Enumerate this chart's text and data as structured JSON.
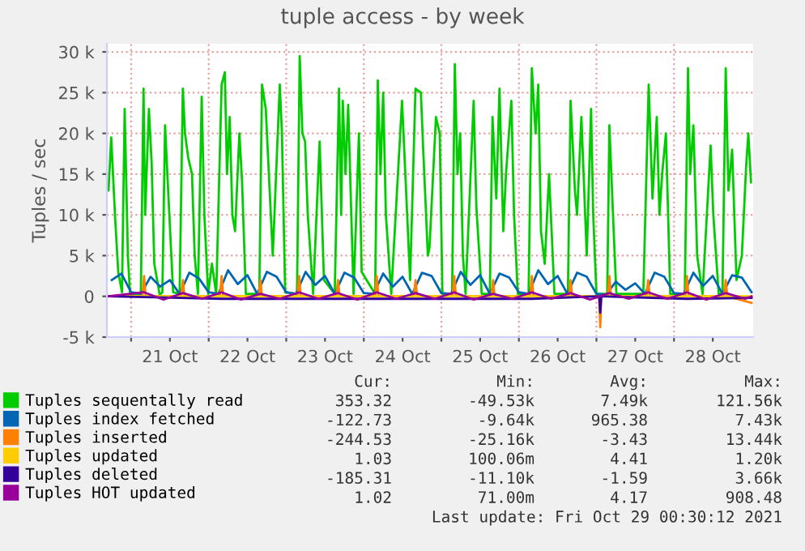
{
  "chart_data": {
    "type": "line",
    "title": "tuple access - by week",
    "ylabel": "Tuples / sec",
    "xlim": [
      "2021-10-20T16:30",
      "2021-10-29T00:30"
    ],
    "xticks": [
      {
        "value": "2021-10-21T00:00",
        "label": null
      },
      {
        "value": "2021-10-21T12:00",
        "label": "21 Oct"
      },
      {
        "value": "2021-10-22T00:00",
        "label": null
      },
      {
        "value": "2021-10-22T12:00",
        "label": "22 Oct"
      },
      {
        "value": "2021-10-23T00:00",
        "label": null
      },
      {
        "value": "2021-10-23T12:00",
        "label": "23 Oct"
      },
      {
        "value": "2021-10-24T00:00",
        "label": null
      },
      {
        "value": "2021-10-24T12:00",
        "label": "24 Oct"
      },
      {
        "value": "2021-10-25T00:00",
        "label": null
      },
      {
        "value": "2021-10-25T12:00",
        "label": "25 Oct"
      },
      {
        "value": "2021-10-26T00:00",
        "label": null
      },
      {
        "value": "2021-10-26T12:00",
        "label": "26 Oct"
      },
      {
        "value": "2021-10-27T00:00",
        "label": null
      },
      {
        "value": "2021-10-27T12:00",
        "label": "27 Oct"
      },
      {
        "value": "2021-10-28T00:00",
        "label": null
      },
      {
        "value": "2021-10-28T12:00",
        "label": "28 Oct"
      }
    ],
    "ylim": [
      -5000,
      31000
    ],
    "yticks": [
      {
        "value": -5000,
        "label": "-5 k"
      },
      0,
      {
        "value": 5000,
        "label": "5 k"
      },
      {
        "value": 10000,
        "label": "10 k"
      },
      {
        "value": 15000,
        "label": "15 k"
      },
      {
        "value": 20000,
        "label": "20 k"
      },
      {
        "value": 25000,
        "label": "25 k"
      },
      {
        "value": 30000,
        "label": "30 k"
      }
    ],
    "grid": true,
    "legend": "bottom",
    "line_style": "solid",
    "series": [
      {
        "name": "Tuples sequentally read",
        "color": "#00cc00",
        "x": [
          "2021-10-20T17:00",
          "2021-10-20T17:50",
          "2021-10-20T19:00",
          "2021-10-20T20:00",
          "2021-10-20T21:10",
          "2021-10-20T22:00",
          "2021-10-20T23:00",
          "2021-10-20T23:40",
          "2021-10-21T03:00",
          "2021-10-21T03:50",
          "2021-10-21T04:20",
          "2021-10-21T05:30",
          "2021-10-21T06:20",
          "2021-10-21T07:10",
          "2021-10-21T08:50",
          "2021-10-21T09:40",
          "2021-10-21T10:30",
          "2021-10-21T11:20",
          "2021-10-21T13:00",
          "2021-10-21T15:00",
          "2021-10-21T16:00",
          "2021-10-21T16:40",
          "2021-10-21T17:40",
          "2021-10-21T18:50",
          "2021-10-21T19:40",
          "2021-10-21T20:40",
          "2021-10-21T21:50",
          "2021-10-21T22:40",
          "2021-10-21T23:50",
          "2021-10-22T01:00",
          "2021-10-22T02:20",
          "2021-10-22T04:00",
          "2021-10-22T05:00",
          "2021-10-22T05:40",
          "2021-10-22T06:30",
          "2021-10-22T07:20",
          "2021-10-22T08:10",
          "2021-10-22T09:30",
          "2021-10-22T10:20",
          "2021-10-22T11:30",
          "2021-10-22T15:40",
          "2021-10-22T16:30",
          "2021-10-22T17:40",
          "2021-10-22T19:50",
          "2021-10-22T22:00",
          "2021-10-22T22:40",
          "2021-10-22T23:40",
          "2021-10-23T03:20",
          "2021-10-23T04:10",
          "2021-10-23T05:00",
          "2021-10-23T05:50",
          "2021-10-23T06:40",
          "2021-10-23T08:20",
          "2021-10-23T10:20",
          "2021-10-23T11:40",
          "2021-10-23T15:00",
          "2021-10-23T16:20",
          "2021-10-23T17:00",
          "2021-10-23T17:30",
          "2021-10-23T18:20",
          "2021-10-23T19:10",
          "2021-10-23T20:50",
          "2021-10-23T22:30",
          "2021-10-23T23:20",
          "2021-10-24T03:30",
          "2021-10-24T04:20",
          "2021-10-24T05:10",
          "2021-10-24T06:00",
          "2021-10-24T06:50",
          "2021-10-24T08:30",
          "2021-10-24T11:50",
          "2021-10-24T14:20",
          "2021-10-24T16:00",
          "2021-10-24T17:40",
          "2021-10-24T18:30",
          "2021-10-24T19:50",
          "2021-10-24T20:20",
          "2021-10-24T22:20",
          "2021-10-24T23:30",
          "2021-10-25T00:20",
          "2021-10-25T03:20",
          "2021-10-25T04:10",
          "2021-10-25T05:00",
          "2021-10-25T05:50",
          "2021-10-25T06:40",
          "2021-10-25T07:30",
          "2021-10-25T10:00",
          "2021-10-25T10:50",
          "2021-10-25T12:30",
          "2021-10-25T15:00",
          "2021-10-25T15:50",
          "2021-10-25T17:00",
          "2021-10-25T18:00",
          "2021-10-25T19:10",
          "2021-10-25T20:00",
          "2021-10-25T21:40",
          "2021-10-25T22:30",
          "2021-10-25T23:40",
          "2021-10-26T03:00",
          "2021-10-26T04:00",
          "2021-10-26T05:10",
          "2021-10-26T06:00",
          "2021-10-26T06:50",
          "2021-10-26T08:00",
          "2021-10-26T09:20",
          "2021-10-26T11:00",
          "2021-10-26T15:10",
          "2021-10-26T16:00",
          "2021-10-26T17:20",
          "2021-10-26T18:00",
          "2021-10-26T19:20",
          "2021-10-26T21:00",
          "2021-10-26T22:20",
          "2021-10-26T23:00",
          "2021-10-27T00:00",
          "2021-10-27T03:20",
          "2021-10-27T04:00",
          "2021-10-27T05:20",
          "2021-10-27T06:10",
          "2021-10-27T14:30",
          "2021-10-27T16:10",
          "2021-10-27T17:20",
          "2021-10-27T18:40",
          "2021-10-27T19:30",
          "2021-10-27T20:20",
          "2021-10-27T21:30",
          "2021-10-27T22:50",
          "2021-10-28T03:20",
          "2021-10-28T04:20",
          "2021-10-28T05:00",
          "2021-10-28T06:00",
          "2021-10-28T07:10",
          "2021-10-28T08:50",
          "2021-10-28T11:20",
          "2021-10-28T12:10",
          "2021-10-28T13:50",
          "2021-10-28T15:00",
          "2021-10-28T16:00",
          "2021-10-28T16:50",
          "2021-10-28T18:00",
          "2021-10-28T19:20",
          "2021-10-28T21:00",
          "2021-10-28T22:20",
          "2021-10-28T23:00",
          "2021-10-28T23:50"
        ],
        "values": [
          13000,
          19500,
          10000,
          3000,
          500,
          23000,
          5000,
          200,
          200,
          25500,
          10000,
          23000,
          16500,
          4000,
          200,
          500,
          21000,
          14000,
          500,
          300,
          25500,
          20000,
          17000,
          15000,
          5000,
          300,
          24500,
          10000,
          300,
          4000,
          300,
          26000,
          27500,
          15000,
          22000,
          10000,
          8000,
          20000,
          14000,
          300,
          300,
          26000,
          23000,
          5000,
          26000,
          20000,
          500,
          300,
          29500,
          20000,
          19000,
          10000,
          300,
          19000,
          2000,
          300,
          25500,
          10000,
          24000,
          15000,
          23500,
          300,
          20000,
          3000,
          300,
          26500,
          15000,
          25000,
          10000,
          300,
          24000,
          2000,
          25500,
          25000,
          17000,
          5000,
          6000,
          22000,
          20000,
          300,
          300,
          28500,
          15000,
          20000,
          5000,
          300,
          24000,
          11000,
          300,
          300,
          22000,
          12000,
          25500,
          8000,
          15000,
          24000,
          10000,
          300,
          300,
          28000,
          20000,
          26000,
          8000,
          4000,
          15000,
          300,
          300,
          24000,
          13000,
          10000,
          22000,
          5000,
          23000,
          10000,
          300,
          300,
          21000,
          8000,
          300,
          300,
          26000,
          12000,
          22000,
          10000,
          15000,
          20000,
          300,
          300,
          28000,
          15000,
          21000,
          5000,
          300,
          18500,
          10000,
          300,
          300,
          28000,
          13000,
          18000,
          2000,
          5000,
          16000,
          20000,
          14000
        ]
      },
      {
        "name": "Tuples index fetched",
        "color": "#0066b3",
        "x": [
          "2021-10-20T18:00",
          "2021-10-20T21:00",
          "2021-10-21T00:00",
          "2021-10-21T03:00",
          "2021-10-21T06:00",
          "2021-10-21T09:00",
          "2021-10-21T12:00",
          "2021-10-21T15:00",
          "2021-10-21T18:00",
          "2021-10-21T21:00",
          "2021-10-22T00:00",
          "2021-10-22T03:00",
          "2021-10-22T06:00",
          "2021-10-22T09:00",
          "2021-10-22T12:00",
          "2021-10-22T15:00",
          "2021-10-22T18:00",
          "2021-10-22T21:00",
          "2021-10-23T00:00",
          "2021-10-23T03:00",
          "2021-10-23T06:00",
          "2021-10-23T09:00",
          "2021-10-23T12:00",
          "2021-10-23T15:00",
          "2021-10-23T18:00",
          "2021-10-23T21:00",
          "2021-10-24T00:00",
          "2021-10-24T03:00",
          "2021-10-24T06:00",
          "2021-10-24T09:00",
          "2021-10-24T12:00",
          "2021-10-24T15:00",
          "2021-10-24T18:00",
          "2021-10-24T21:00",
          "2021-10-25T00:00",
          "2021-10-25T03:00",
          "2021-10-25T06:00",
          "2021-10-25T09:00",
          "2021-10-25T12:00",
          "2021-10-25T15:00",
          "2021-10-25T18:00",
          "2021-10-25T21:00",
          "2021-10-26T00:00",
          "2021-10-26T03:00",
          "2021-10-26T06:00",
          "2021-10-26T09:00",
          "2021-10-26T12:00",
          "2021-10-26T15:00",
          "2021-10-26T18:00",
          "2021-10-26T21:00",
          "2021-10-27T00:00",
          "2021-10-27T03:00",
          "2021-10-27T06:00",
          "2021-10-27T09:00",
          "2021-10-27T12:00",
          "2021-10-27T15:00",
          "2021-10-27T18:00",
          "2021-10-27T21:00",
          "2021-10-28T00:00",
          "2021-10-28T03:00",
          "2021-10-28T06:00",
          "2021-10-28T09:00",
          "2021-10-28T12:00",
          "2021-10-28T15:00",
          "2021-10-28T18:00",
          "2021-10-28T21:00",
          "2021-10-29T00:00"
        ],
        "values": [
          2000,
          2800,
          500,
          300,
          2400,
          1200,
          2000,
          300,
          2900,
          2200,
          500,
          300,
          3200,
          1500,
          2600,
          300,
          3000,
          2400,
          500,
          300,
          3000,
          1400,
          2500,
          300,
          2900,
          2300,
          400,
          300,
          2800,
          1200,
          2400,
          300,
          2900,
          2500,
          400,
          300,
          3000,
          1400,
          2600,
          300,
          2800,
          2300,
          500,
          300,
          3200,
          1500,
          2500,
          300,
          2900,
          2400,
          300,
          200,
          1800,
          800,
          1600,
          300,
          2900,
          2400,
          400,
          300,
          2900,
          1300,
          2500,
          300,
          2600,
          2300,
          500
        ]
      },
      {
        "name": "Tuples inserted",
        "color": "#ff8000",
        "x": [
          "2021-10-20T17:00",
          "2021-10-21T03:30",
          "2021-10-21T04:00",
          "2021-10-21T04:30",
          "2021-10-21T15:30",
          "2021-10-21T16:00",
          "2021-10-21T16:30",
          "2021-10-22T03:30",
          "2021-10-22T04:00",
          "2021-10-22T04:30",
          "2021-10-22T15:30",
          "2021-10-22T16:00",
          "2021-10-22T16:30",
          "2021-10-23T03:30",
          "2021-10-23T04:00",
          "2021-10-23T04:30",
          "2021-10-23T15:30",
          "2021-10-23T16:00",
          "2021-10-23T16:30",
          "2021-10-24T03:30",
          "2021-10-24T04:00",
          "2021-10-24T04:30",
          "2021-10-24T15:30",
          "2021-10-24T16:00",
          "2021-10-24T16:30",
          "2021-10-25T03:30",
          "2021-10-25T04:00",
          "2021-10-25T04:30",
          "2021-10-25T15:30",
          "2021-10-25T16:00",
          "2021-10-25T16:30",
          "2021-10-26T03:30",
          "2021-10-26T04:00",
          "2021-10-26T04:30",
          "2021-10-26T15:30",
          "2021-10-26T16:00",
          "2021-10-26T16:30",
          "2021-10-27T00:50",
          "2021-10-27T01:10",
          "2021-10-27T01:30",
          "2021-10-27T03:30",
          "2021-10-27T04:00",
          "2021-10-27T04:30",
          "2021-10-27T15:30",
          "2021-10-27T16:00",
          "2021-10-27T16:30",
          "2021-10-28T03:30",
          "2021-10-28T04:00",
          "2021-10-28T04:30",
          "2021-10-28T15:30",
          "2021-10-28T16:00",
          "2021-10-28T16:30",
          "2021-10-29T00:00"
        ],
        "values": [
          0,
          0,
          2500,
          0,
          0,
          2000,
          0,
          0,
          2500,
          0,
          0,
          2000,
          0,
          0,
          2500,
          0,
          0,
          2000,
          0,
          0,
          2500,
          0,
          0,
          2000,
          0,
          0,
          2500,
          0,
          0,
          2000,
          0,
          0,
          2500,
          0,
          0,
          2000,
          0,
          0,
          -3800,
          0,
          0,
          2500,
          0,
          0,
          2000,
          0,
          0,
          2500,
          0,
          0,
          2000,
          0,
          -800
        ]
      },
      {
        "name": "Tuples updated",
        "color": "#ffcc00",
        "x": [
          "2021-10-20T17:00",
          "2021-10-29T00:00"
        ],
        "values": [
          0,
          0
        ]
      },
      {
        "name": "Tuples deleted",
        "color": "#330099",
        "x": [
          "2021-10-20T17:00",
          "2021-10-22T04:00",
          "2021-10-24T04:00",
          "2021-10-26T04:00",
          "2021-10-27T00:50",
          "2021-10-27T01:10",
          "2021-10-27T01:30",
          "2021-10-28T04:00",
          "2021-10-29T00:00"
        ],
        "values": [
          0,
          -300,
          -300,
          -300,
          0,
          -2000,
          0,
          -300,
          -200
        ]
      },
      {
        "name": "Tuples HOT updated",
        "color": "#990099",
        "x": [
          "2021-10-20T17:00",
          "2021-10-21T04:00",
          "2021-10-21T10:00",
          "2021-10-21T16:00",
          "2021-10-21T22:00",
          "2021-10-22T04:00",
          "2021-10-22T10:00",
          "2021-10-22T16:00",
          "2021-10-22T22:00",
          "2021-10-23T04:00",
          "2021-10-23T10:00",
          "2021-10-23T16:00",
          "2021-10-23T22:00",
          "2021-10-24T04:00",
          "2021-10-24T10:00",
          "2021-10-24T16:00",
          "2021-10-24T22:00",
          "2021-10-25T04:00",
          "2021-10-25T10:00",
          "2021-10-25T16:00",
          "2021-10-25T22:00",
          "2021-10-26T04:00",
          "2021-10-26T10:00",
          "2021-10-26T16:00",
          "2021-10-26T22:00",
          "2021-10-27T04:00",
          "2021-10-27T10:00",
          "2021-10-27T16:00",
          "2021-10-27T22:00",
          "2021-10-28T04:00",
          "2021-10-28T10:00",
          "2021-10-28T16:00",
          "2021-10-28T22:00",
          "2021-10-29T00:00"
        ],
        "values": [
          0,
          500,
          -400,
          400,
          -300,
          500,
          -400,
          300,
          -300,
          500,
          -300,
          400,
          -400,
          500,
          -300,
          400,
          -300,
          500,
          -400,
          300,
          -300,
          500,
          -300,
          400,
          -400,
          400,
          -300,
          500,
          -300,
          500,
          -400,
          400,
          -300,
          0
        ]
      }
    ],
    "annotations": [
      "Cur:",
      "Min:",
      "Avg:",
      "Max:",
      "353.32",
      "-49.53k",
      "7.49k",
      "121.56k",
      "-122.73",
      "-9.64k",
      "965.38",
      "7.43k",
      "-244.53",
      "-25.16k",
      "-3.43",
      "13.44k",
      "1.03",
      "100.06m",
      "4.41",
      "1.20k",
      "-185.31",
      "-11.10k",
      "-1.59",
      "3.66k",
      "1.02",
      "71.00m",
      "4.17",
      "908.48",
      "Last update: Fri Oct 29 00:30:12 2021"
    ]
  }
}
